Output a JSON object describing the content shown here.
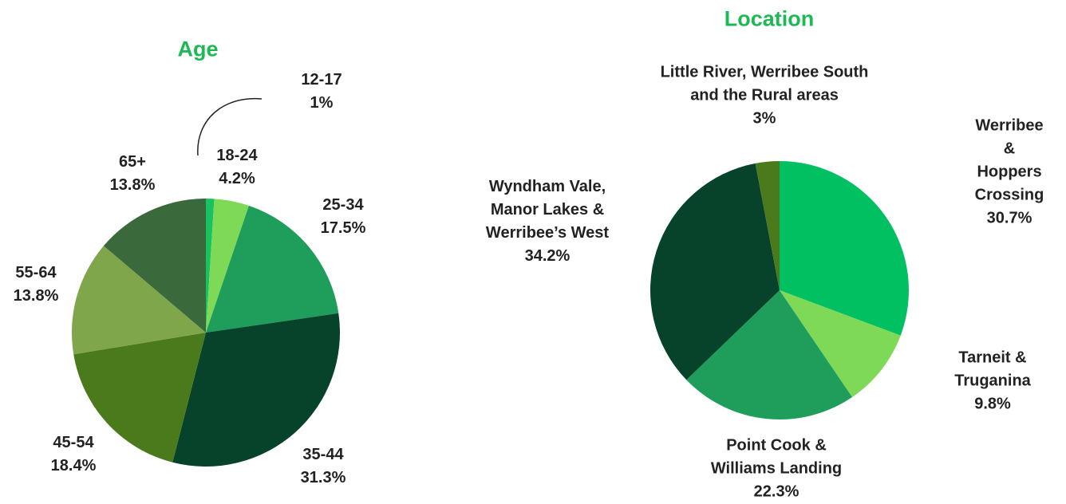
{
  "chart_data": [
    {
      "type": "pie",
      "title": "Age",
      "categories": [
        "12-17",
        "18-24",
        "25-34",
        "35-44",
        "45-54",
        "55-64",
        "65+"
      ],
      "values": [
        1,
        4.2,
        17.5,
        31.3,
        18.4,
        13.8,
        13.8
      ],
      "value_labels": [
        "1%",
        "4.2%",
        "17.5%",
        "31.3%",
        "18.4%",
        "13.8%",
        "13.8%"
      ],
      "colors": [
        "#19c261",
        "#7ed957",
        "#1f9e5b",
        "#06432a",
        "#4b7a1d",
        "#7fa64b",
        "#3a6a3b"
      ]
    },
    {
      "type": "pie",
      "title": "Location",
      "categories": [
        "Werribee &\nHoppers\nCrossing",
        "Tarneit &\nTruganina",
        "Point Cook &\nWilliams Landing",
        "Wyndham Vale,\nManor Lakes &\nWerribee’s West",
        "Little River, Werribee South\nand the Rural areas"
      ],
      "values": [
        30.7,
        9.8,
        22.3,
        34.2,
        3
      ],
      "value_labels": [
        "30.7%",
        "9.8%",
        "22.3%",
        "34.2%",
        "3%"
      ],
      "colors": [
        "#00c062",
        "#7ed957",
        "#1f9e5b",
        "#06432a",
        "#4b7a1d"
      ]
    }
  ]
}
